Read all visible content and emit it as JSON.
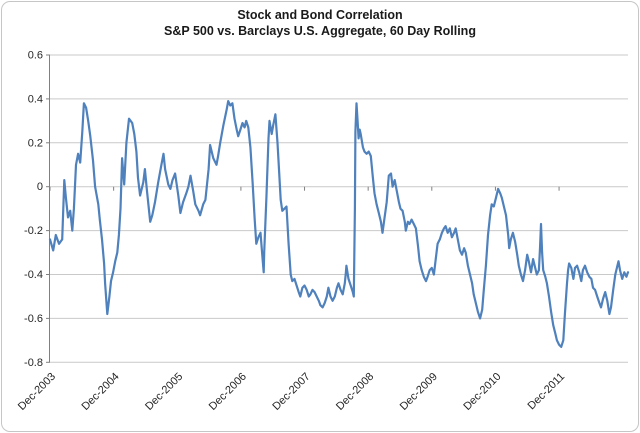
{
  "frame": {
    "background_color": "#ffffff",
    "border_color": "#c6c6c6"
  },
  "chart_data": {
    "type": "line",
    "title": "Stock and Bond Correlation",
    "subtitle": "S&P 500 vs. Barclays U.S. Aggregate, 60 Day Rolling",
    "xlabel": "",
    "ylabel": "",
    "grid": true,
    "legend": "none",
    "ylim": [
      -0.8,
      0.6
    ],
    "y_tick_labels": [
      "0.6",
      "0.4",
      "0.2",
      "0",
      "-0.2",
      "-0.4",
      "-0.6",
      "-0.8"
    ],
    "x_tick_labels": [
      "Dec-2003",
      "Dec-2004",
      "Dec-2005",
      "Dec-2006",
      "Dec-2007",
      "Dec-2008",
      "Dec-2009",
      "Dec-2010",
      "Dec-2011"
    ],
    "x_tick_months": [
      0,
      12,
      24,
      36,
      48,
      60,
      72,
      84,
      96
    ],
    "x_max_month": 109,
    "line_color": "#4F81BD",
    "grid_color": "#c9c9c9",
    "axis_color": "#808080",
    "text_color": "#262626",
    "series": [
      {
        "name": "S&P 500 vs. Barclays U.S. Aggregate 60 day rolling correlation",
        "points": [
          [
            0,
            -0.24
          ],
          [
            0.6,
            -0.29
          ],
          [
            1.1,
            -0.22
          ],
          [
            1.7,
            -0.26
          ],
          [
            2.3,
            -0.24
          ],
          [
            2.7,
            0.03
          ],
          [
            3.0,
            -0.05
          ],
          [
            3.4,
            -0.14
          ],
          [
            3.8,
            -0.11
          ],
          [
            4.2,
            -0.2
          ],
          [
            4.5,
            -0.1
          ],
          [
            4.9,
            0.1
          ],
          [
            5.3,
            0.15
          ],
          [
            5.7,
            0.11
          ],
          [
            6.1,
            0.25
          ],
          [
            6.4,
            0.38
          ],
          [
            6.8,
            0.36
          ],
          [
            7.2,
            0.3
          ],
          [
            7.6,
            0.23
          ],
          [
            8.1,
            0.12
          ],
          [
            8.5,
            0.0
          ],
          [
            9.1,
            -0.08
          ],
          [
            9.4,
            -0.15
          ],
          [
            9.8,
            -0.24
          ],
          [
            10.2,
            -0.35
          ],
          [
            10.4,
            -0.44
          ],
          [
            10.8,
            -0.58
          ],
          [
            11.2,
            -0.5
          ],
          [
            11.5,
            -0.43
          ],
          [
            11.9,
            -0.39
          ],
          [
            12.3,
            -0.34
          ],
          [
            12.7,
            -0.3
          ],
          [
            13.0,
            -0.22
          ],
          [
            13.3,
            -0.1
          ],
          [
            13.6,
            0.13
          ],
          [
            14.0,
            0.01
          ],
          [
            14.4,
            0.2
          ],
          [
            14.9,
            0.31
          ],
          [
            15.5,
            0.29
          ],
          [
            15.9,
            0.24
          ],
          [
            16.3,
            0.16
          ],
          [
            16.6,
            0.04
          ],
          [
            17.0,
            -0.04
          ],
          [
            17.6,
            0.02
          ],
          [
            17.9,
            0.08
          ],
          [
            18.3,
            -0.02
          ],
          [
            18.9,
            -0.16
          ],
          [
            19.3,
            -0.13
          ],
          [
            19.8,
            -0.07
          ],
          [
            20.4,
            0.02
          ],
          [
            21.0,
            0.1
          ],
          [
            21.4,
            0.15
          ],
          [
            21.7,
            0.08
          ],
          [
            22.3,
            0.01
          ],
          [
            22.7,
            -0.01
          ],
          [
            23.1,
            0.03
          ],
          [
            23.6,
            0.06
          ],
          [
            24.2,
            -0.04
          ],
          [
            24.6,
            -0.12
          ],
          [
            25.1,
            -0.07
          ],
          [
            25.7,
            -0.03
          ],
          [
            26.1,
            0.0
          ],
          [
            26.5,
            0.05
          ],
          [
            27.0,
            -0.02
          ],
          [
            27.4,
            -0.08
          ],
          [
            28.0,
            -0.11
          ],
          [
            28.3,
            -0.13
          ],
          [
            28.9,
            -0.08
          ],
          [
            29.3,
            -0.06
          ],
          [
            29.9,
            0.08
          ],
          [
            30.2,
            0.19
          ],
          [
            30.8,
            0.13
          ],
          [
            31.4,
            0.1
          ],
          [
            31.7,
            0.14
          ],
          [
            32.1,
            0.2
          ],
          [
            32.7,
            0.28
          ],
          [
            33.3,
            0.35
          ],
          [
            33.6,
            0.39
          ],
          [
            34.0,
            0.37
          ],
          [
            34.4,
            0.38
          ],
          [
            34.8,
            0.31
          ],
          [
            35.2,
            0.26
          ],
          [
            35.5,
            0.23
          ],
          [
            35.9,
            0.26
          ],
          [
            36.3,
            0.29
          ],
          [
            36.7,
            0.27
          ],
          [
            37.0,
            0.3
          ],
          [
            37.4,
            0.27
          ],
          [
            37.8,
            0.18
          ],
          [
            38.2,
            0.02
          ],
          [
            38.6,
            -0.15
          ],
          [
            38.9,
            -0.26
          ],
          [
            39.3,
            -0.23
          ],
          [
            39.7,
            -0.21
          ],
          [
            40.1,
            -0.33
          ],
          [
            40.3,
            -0.39
          ],
          [
            40.4,
            -0.3
          ],
          [
            40.8,
            -0.05
          ],
          [
            41.2,
            0.22
          ],
          [
            41.4,
            0.3
          ],
          [
            41.8,
            0.24
          ],
          [
            42.1,
            0.28
          ],
          [
            42.5,
            0.33
          ],
          [
            42.9,
            0.2
          ],
          [
            43.1,
            0.12
          ],
          [
            43.5,
            -0.06
          ],
          [
            43.8,
            -0.11
          ],
          [
            44.2,
            -0.1
          ],
          [
            44.6,
            -0.09
          ],
          [
            45.0,
            -0.26
          ],
          [
            45.4,
            -0.4
          ],
          [
            45.7,
            -0.43
          ],
          [
            46.1,
            -0.42
          ],
          [
            46.5,
            -0.45
          ],
          [
            46.9,
            -0.48
          ],
          [
            47.2,
            -0.5
          ],
          [
            47.6,
            -0.46
          ],
          [
            48.0,
            -0.45
          ],
          [
            48.4,
            -0.47
          ],
          [
            48.8,
            -0.5
          ],
          [
            49.1,
            -0.49
          ],
          [
            49.5,
            -0.47
          ],
          [
            49.9,
            -0.48
          ],
          [
            50.3,
            -0.5
          ],
          [
            50.7,
            -0.52
          ],
          [
            51.0,
            -0.54
          ],
          [
            51.4,
            -0.55
          ],
          [
            51.8,
            -0.53
          ],
          [
            52.2,
            -0.5
          ],
          [
            52.5,
            -0.46
          ],
          [
            52.9,
            -0.5
          ],
          [
            53.3,
            -0.52
          ],
          [
            53.7,
            -0.5
          ],
          [
            54.1,
            -0.46
          ],
          [
            54.4,
            -0.44
          ],
          [
            54.8,
            -0.47
          ],
          [
            55.2,
            -0.49
          ],
          [
            55.6,
            -0.44
          ],
          [
            55.8,
            -0.39
          ],
          [
            55.9,
            -0.36
          ],
          [
            56.3,
            -0.42
          ],
          [
            56.7,
            -0.45
          ],
          [
            57.1,
            -0.48
          ],
          [
            57.3,
            -0.5
          ],
          [
            57.5,
            -0.1
          ],
          [
            57.6,
            0.25
          ],
          [
            57.8,
            0.38
          ],
          [
            58.0,
            0.3
          ],
          [
            58.2,
            0.22
          ],
          [
            58.4,
            0.26
          ],
          [
            58.6,
            0.24
          ],
          [
            59.0,
            0.18
          ],
          [
            59.3,
            0.16
          ],
          [
            59.7,
            0.15
          ],
          [
            60.1,
            0.16
          ],
          [
            60.5,
            0.14
          ],
          [
            60.9,
            0.04
          ],
          [
            61.2,
            -0.03
          ],
          [
            61.6,
            -0.08
          ],
          [
            62.0,
            -0.12
          ],
          [
            62.4,
            -0.16
          ],
          [
            62.7,
            -0.21
          ],
          [
            63.1,
            -0.14
          ],
          [
            63.5,
            -0.07
          ],
          [
            63.9,
            0.05
          ],
          [
            64.3,
            0.06
          ],
          [
            64.6,
            0.0
          ],
          [
            65.0,
            0.03
          ],
          [
            65.4,
            -0.02
          ],
          [
            65.8,
            -0.07
          ],
          [
            66.1,
            -0.1
          ],
          [
            66.5,
            -0.11
          ],
          [
            66.9,
            -0.16
          ],
          [
            67.1,
            -0.2
          ],
          [
            67.5,
            -0.16
          ],
          [
            67.8,
            -0.17
          ],
          [
            68.2,
            -0.15
          ],
          [
            68.6,
            -0.17
          ],
          [
            69.0,
            -0.19
          ],
          [
            69.4,
            -0.27
          ],
          [
            69.7,
            -0.34
          ],
          [
            70.1,
            -0.38
          ],
          [
            70.5,
            -0.41
          ],
          [
            70.9,
            -0.43
          ],
          [
            71.2,
            -0.41
          ],
          [
            71.6,
            -0.38
          ],
          [
            72.0,
            -0.37
          ],
          [
            72.4,
            -0.4
          ],
          [
            72.8,
            -0.32
          ],
          [
            73.1,
            -0.26
          ],
          [
            73.5,
            -0.24
          ],
          [
            73.9,
            -0.21
          ],
          [
            74.3,
            -0.19
          ],
          [
            74.6,
            -0.18
          ],
          [
            75.0,
            -0.21
          ],
          [
            75.4,
            -0.19
          ],
          [
            75.8,
            -0.23
          ],
          [
            76.2,
            -0.21
          ],
          [
            76.5,
            -0.19
          ],
          [
            76.9,
            -0.24
          ],
          [
            77.3,
            -0.29
          ],
          [
            77.7,
            -0.31
          ],
          [
            78.1,
            -0.28
          ],
          [
            78.4,
            -0.3
          ],
          [
            78.8,
            -0.36
          ],
          [
            79.2,
            -0.4
          ],
          [
            79.6,
            -0.44
          ],
          [
            79.9,
            -0.49
          ],
          [
            80.3,
            -0.53
          ],
          [
            80.7,
            -0.57
          ],
          [
            81.1,
            -0.6
          ],
          [
            81.5,
            -0.56
          ],
          [
            81.8,
            -0.47
          ],
          [
            82.2,
            -0.36
          ],
          [
            82.6,
            -0.22
          ],
          [
            83.0,
            -0.13
          ],
          [
            83.3,
            -0.08
          ],
          [
            83.7,
            -0.09
          ],
          [
            84.1,
            -0.05
          ],
          [
            84.5,
            -0.01
          ],
          [
            84.9,
            -0.03
          ],
          [
            85.2,
            -0.05
          ],
          [
            85.6,
            -0.09
          ],
          [
            86.0,
            -0.13
          ],
          [
            86.4,
            -0.22
          ],
          [
            86.6,
            -0.28
          ],
          [
            86.9,
            -0.24
          ],
          [
            87.3,
            -0.21
          ],
          [
            87.7,
            -0.25
          ],
          [
            88.1,
            -0.31
          ],
          [
            88.4,
            -0.36
          ],
          [
            88.8,
            -0.4
          ],
          [
            89.2,
            -0.43
          ],
          [
            89.6,
            -0.38
          ],
          [
            90.0,
            -0.31
          ],
          [
            90.3,
            -0.34
          ],
          [
            90.7,
            -0.39
          ],
          [
            91.1,
            -0.33
          ],
          [
            91.5,
            -0.37
          ],
          [
            91.8,
            -0.4
          ],
          [
            92.2,
            -0.38
          ],
          [
            92.4,
            -0.28
          ],
          [
            92.6,
            -0.17
          ],
          [
            92.8,
            -0.3
          ],
          [
            93.0,
            -0.38
          ],
          [
            93.4,
            -0.41
          ],
          [
            93.7,
            -0.44
          ],
          [
            94.1,
            -0.5
          ],
          [
            94.5,
            -0.57
          ],
          [
            94.9,
            -0.63
          ],
          [
            95.3,
            -0.67
          ],
          [
            95.6,
            -0.7
          ],
          [
            96.0,
            -0.72
          ],
          [
            96.4,
            -0.73
          ],
          [
            96.8,
            -0.7
          ],
          [
            97.1,
            -0.58
          ],
          [
            97.5,
            -0.44
          ],
          [
            97.7,
            -0.38
          ],
          [
            97.9,
            -0.35
          ],
          [
            98.3,
            -0.37
          ],
          [
            98.7,
            -0.42
          ],
          [
            99.0,
            -0.37
          ],
          [
            99.4,
            -0.36
          ],
          [
            99.8,
            -0.39
          ],
          [
            100.2,
            -0.43
          ],
          [
            100.5,
            -0.38
          ],
          [
            100.9,
            -0.36
          ],
          [
            101.3,
            -0.39
          ],
          [
            101.7,
            -0.41
          ],
          [
            102.1,
            -0.42
          ],
          [
            102.4,
            -0.46
          ],
          [
            102.8,
            -0.47
          ],
          [
            103.2,
            -0.5
          ],
          [
            103.6,
            -0.53
          ],
          [
            103.9,
            -0.55
          ],
          [
            104.3,
            -0.51
          ],
          [
            104.7,
            -0.48
          ],
          [
            105.1,
            -0.52
          ],
          [
            105.5,
            -0.58
          ],
          [
            105.8,
            -0.55
          ],
          [
            106.2,
            -0.47
          ],
          [
            106.6,
            -0.4
          ],
          [
            107.0,
            -0.36
          ],
          [
            107.2,
            -0.34
          ],
          [
            107.5,
            -0.38
          ],
          [
            107.9,
            -0.42
          ],
          [
            108.3,
            -0.39
          ],
          [
            108.7,
            -0.41
          ],
          [
            109.0,
            -0.39
          ]
        ]
      }
    ]
  }
}
